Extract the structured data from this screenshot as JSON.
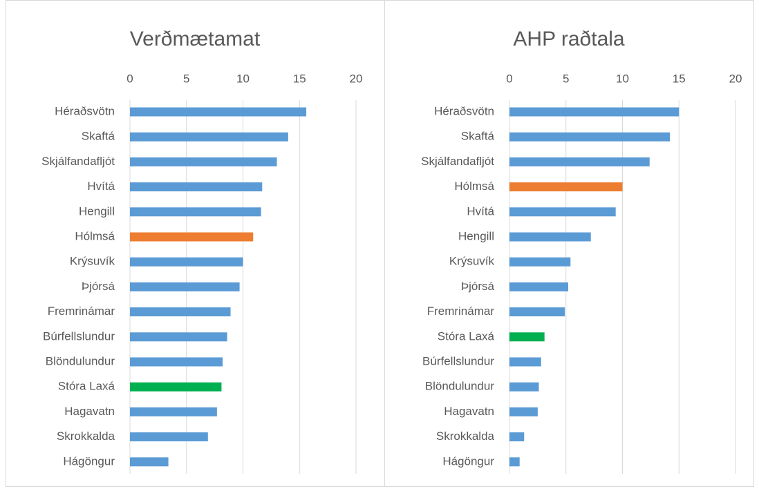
{
  "chart_data": [
    {
      "type": "bar",
      "orientation": "horizontal",
      "title": "Verðmætamat",
      "categories": [
        "Héraðsvötn",
        "Skaftá",
        "Skjálfandafljót",
        "Hvítá",
        "Hengill",
        "Hólmsá",
        "Krýsuvík",
        "Þjórsá",
        "Fremrinámar",
        "Búrfellslundur",
        "Blöndulundur",
        "Stóra Laxá",
        "Hagavatn",
        "Skrokkalda",
        "Hágöngur"
      ],
      "values": [
        15.6,
        14.0,
        13.0,
        11.7,
        11.6,
        10.9,
        10.0,
        9.7,
        8.9,
        8.6,
        8.2,
        8.1,
        7.7,
        6.9,
        3.4
      ],
      "colors": [
        "#5b9bd5",
        "#5b9bd5",
        "#5b9bd5",
        "#5b9bd5",
        "#5b9bd5",
        "#ed7d31",
        "#5b9bd5",
        "#5b9bd5",
        "#5b9bd5",
        "#5b9bd5",
        "#5b9bd5",
        "#00b050",
        "#5b9bd5",
        "#5b9bd5",
        "#5b9bd5"
      ],
      "xlim": [
        0,
        20
      ],
      "xticks": [
        0,
        5,
        10,
        15,
        20
      ],
      "grid": true
    },
    {
      "type": "bar",
      "orientation": "horizontal",
      "title": "AHP raðtala",
      "categories": [
        "Héraðsvötn",
        "Skaftá",
        "Skjálfandafljót",
        "Hólmsá",
        "Hvítá",
        "Hengill",
        "Krýsuvík",
        "Þjórsá",
        "Fremrinámar",
        "Stóra Laxá",
        "Búrfellslundur",
        "Blöndulundur",
        "Hagavatn",
        "Skrokkalda",
        "Hágöngur"
      ],
      "values": [
        15.0,
        14.2,
        12.4,
        10.0,
        9.4,
        7.2,
        5.4,
        5.2,
        4.9,
        3.1,
        2.8,
        2.6,
        2.5,
        1.3,
        0.9
      ],
      "colors": [
        "#5b9bd5",
        "#5b9bd5",
        "#5b9bd5",
        "#ed7d31",
        "#5b9bd5",
        "#5b9bd5",
        "#5b9bd5",
        "#5b9bd5",
        "#5b9bd5",
        "#00b050",
        "#5b9bd5",
        "#5b9bd5",
        "#5b9bd5",
        "#5b9bd5",
        "#5b9bd5"
      ],
      "xlim": [
        0,
        20
      ],
      "xticks": [
        0,
        5,
        10,
        15,
        20
      ],
      "grid": true
    }
  ]
}
